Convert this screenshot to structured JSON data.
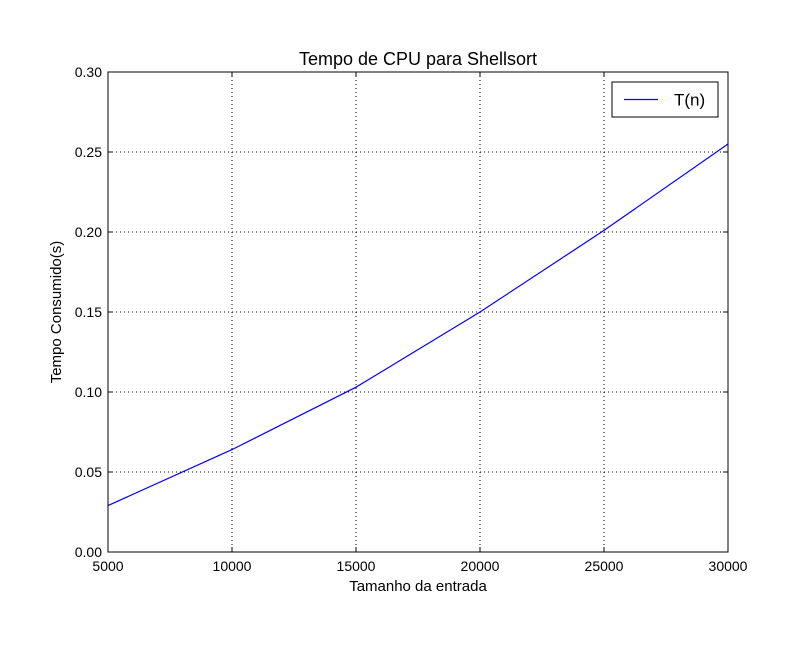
{
  "chart_data": {
    "type": "line",
    "title": "Tempo de CPU para Shellsort",
    "xlabel": "Tamanho da entrada",
    "ylabel": "Tempo Consumido(s)",
    "xlim": [
      5000,
      30000
    ],
    "ylim": [
      0.0,
      0.3
    ],
    "x_ticks": [
      5000,
      10000,
      15000,
      20000,
      25000,
      30000
    ],
    "x_tick_labels": [
      "5000",
      "10000",
      "15000",
      "20000",
      "25000",
      "30000"
    ],
    "y_ticks": [
      0.0,
      0.05,
      0.1,
      0.15,
      0.2,
      0.25,
      0.3
    ],
    "y_tick_labels": [
      "0.00",
      "0.05",
      "0.10",
      "0.15",
      "0.20",
      "0.25",
      "0.30"
    ],
    "grid": true,
    "legend_position": "top-right",
    "series": [
      {
        "name": "T(n)",
        "color": "#0000ff",
        "x": [
          5000,
          10000,
          15000,
          20000,
          25000,
          30000
        ],
        "y": [
          0.029,
          0.064,
          0.103,
          0.15,
          0.201,
          0.255
        ]
      }
    ]
  }
}
